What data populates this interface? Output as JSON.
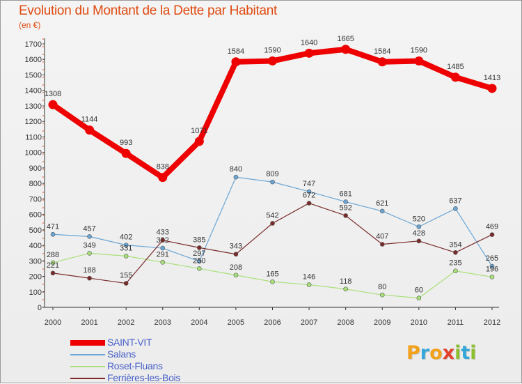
{
  "title": "Evolution du Montant de la Dette par Habitant",
  "unit": "(en €)",
  "logo": {
    "text": "Proxiti",
    "letters": [
      {
        "ch": "P",
        "color": "#f2a21a"
      },
      {
        "ch": "r",
        "color": "#34a7d8"
      },
      {
        "ch": "o",
        "color": "#f2a21a"
      },
      {
        "ch": "x",
        "color": "#e2412b"
      },
      {
        "ch": "i",
        "color": "#8bbf2d"
      },
      {
        "ch": "t",
        "color": "#34a7d8"
      },
      {
        "ch": "i",
        "color": "#8bbf2d"
      }
    ]
  },
  "chart_data": {
    "type": "line",
    "title": "Evolution du Montant de la Dette par Habitant",
    "ylabel": "(en €)",
    "xlabel": "",
    "ylim": [
      0,
      1700
    ],
    "ytick_step": 100,
    "grid": false,
    "legend_position": "bottom-left",
    "x": [
      "2000",
      "2001",
      "2002",
      "2003",
      "2004",
      "2005",
      "2006",
      "2007",
      "2008",
      "2009",
      "2010",
      "2011",
      "2012"
    ],
    "series": [
      {
        "name": "SAINT-VIT",
        "color": "#ee0000",
        "emphasis": "thick",
        "values": [
          1308,
          1144,
          993,
          838,
          1071,
          1584,
          1590,
          1640,
          1665,
          1584,
          1590,
          1485,
          1413
        ]
      },
      {
        "name": "Salans",
        "color": "#6aa6d6",
        "emphasis": "thin",
        "values": [
          471,
          457,
          402,
          382,
          297,
          840,
          809,
          747,
          681,
          621,
          520,
          637,
          265
        ]
      },
      {
        "name": "Roset-Fluans",
        "color": "#a9e07a",
        "emphasis": "thin",
        "values": [
          288,
          349,
          331,
          291,
          250,
          208,
          165,
          146,
          118,
          80,
          60,
          235,
          196
        ]
      },
      {
        "name": "Ferrières-les-Bois",
        "color": "#7a2a2a",
        "emphasis": "thin",
        "values": [
          221,
          188,
          155,
          433,
          385,
          343,
          542,
          672,
          592,
          407,
          428,
          354,
          469
        ]
      }
    ]
  }
}
